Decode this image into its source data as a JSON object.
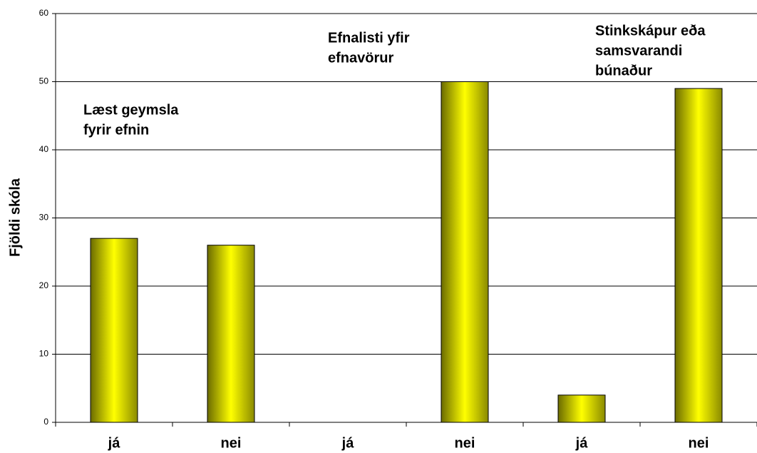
{
  "chart_data": {
    "type": "bar",
    "y_label": "Fjöldi skóla",
    "categories": [
      "já",
      "nei",
      "já",
      "nei",
      "já",
      "nei"
    ],
    "values": [
      27,
      26,
      0,
      50,
      4,
      49
    ],
    "color": "#ffff00",
    "ylim": [
      0,
      60
    ],
    "yticks": [
      0,
      10,
      20,
      30,
      40,
      50,
      60
    ],
    "grid": true,
    "annotations": [
      {
        "lines": [
          "Læst geymsla",
          "fyrir efnin"
        ]
      },
      {
        "lines": [
          "Efnalisti yfir",
          "efnavörur"
        ]
      },
      {
        "lines": [
          "Stinkskápur eða",
          "samsvarandi",
          "búnaður"
        ]
      }
    ]
  }
}
